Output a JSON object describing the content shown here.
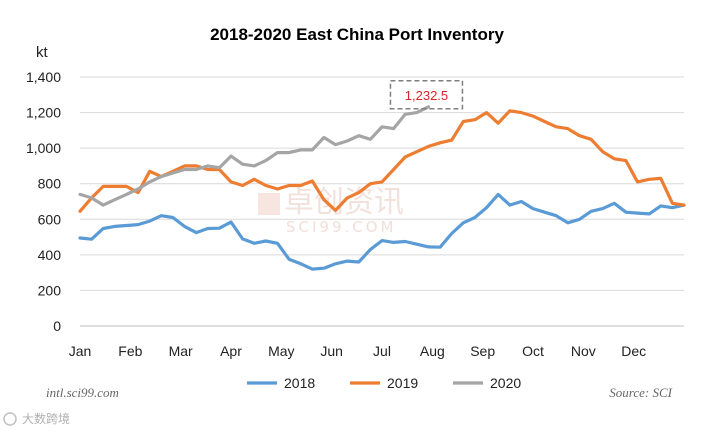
{
  "chart_data": {
    "type": "line",
    "title": "2018-2020 East China Port Inventory",
    "ylabel": "kt",
    "ylim": [
      0,
      1400
    ],
    "yticks": [
      0,
      200,
      400,
      600,
      800,
      1000,
      1200,
      1400
    ],
    "ytick_labels": [
      "0",
      "200",
      "400",
      "600",
      "800",
      "1,000",
      "1,200",
      "1,400"
    ],
    "xlim": [
      0,
      52
    ],
    "months": [
      "Jan",
      "Feb",
      "Mar",
      "Apr",
      "May",
      "Jun",
      "Jul",
      "Aug",
      "Sep",
      "Oct",
      "Nov",
      "Dec"
    ],
    "grid": true,
    "legend_position": "bottom",
    "series": [
      {
        "name": "2018",
        "color": "#5b9bd5",
        "x": [
          0,
          1,
          2,
          3,
          4,
          5,
          6,
          7,
          8,
          9,
          10,
          11,
          12,
          13,
          14,
          15,
          16,
          17,
          18,
          19,
          20,
          21,
          22,
          23,
          24,
          25,
          26,
          27,
          28,
          29,
          30,
          31,
          32,
          33,
          34,
          35,
          36,
          37,
          38,
          39,
          40,
          41,
          42,
          43,
          44,
          45,
          46,
          47,
          48,
          49,
          50,
          51,
          52
        ],
        "values": [
          495,
          488,
          548,
          560,
          565,
          570,
          590,
          620,
          610,
          560,
          525,
          548,
          550,
          585,
          490,
          465,
          478,
          465,
          375,
          350,
          320,
          325,
          350,
          365,
          360,
          430,
          480,
          470,
          475,
          460,
          445,
          443,
          520,
          580,
          610,
          665,
          740,
          680,
          700,
          660,
          640,
          620,
          580,
          600,
          645,
          660,
          690,
          640,
          635,
          630,
          675,
          665,
          680
        ]
      },
      {
        "name": "2019",
        "color": "#ed7d31",
        "x": [
          0,
          1,
          2,
          3,
          4,
          5,
          6,
          7,
          8,
          9,
          10,
          11,
          12,
          13,
          14,
          15,
          16,
          17,
          18,
          19,
          20,
          21,
          22,
          23,
          24,
          25,
          26,
          27,
          28,
          29,
          30,
          31,
          32,
          33,
          34,
          35,
          36,
          37,
          38,
          39,
          40,
          41,
          42,
          43,
          44,
          45,
          46,
          47,
          48,
          49,
          50,
          51,
          52
        ],
        "values": [
          645,
          720,
          785,
          785,
          785,
          750,
          870,
          840,
          870,
          900,
          900,
          880,
          880,
          810,
          790,
          825,
          790,
          770,
          790,
          790,
          815,
          710,
          650,
          720,
          750,
          800,
          810,
          880,
          950,
          980,
          1010,
          1030,
          1045,
          1150,
          1160,
          1200,
          1140,
          1210,
          1200,
          1180,
          1150,
          1120,
          1110,
          1070,
          1050,
          980,
          940,
          930,
          810,
          825,
          830,
          690,
          680
        ]
      },
      {
        "name": "2020",
        "color": "#a5a5a5",
        "x": [
          0,
          1,
          2,
          3,
          4,
          5,
          6,
          7,
          8,
          9,
          10,
          11,
          12,
          13,
          14,
          15,
          16,
          17,
          18,
          19,
          20,
          21,
          22,
          23,
          24,
          25,
          26,
          27,
          28,
          29,
          30
        ],
        "values": [
          740,
          720,
          680,
          710,
          740,
          770,
          810,
          840,
          860,
          880,
          880,
          900,
          890,
          955,
          910,
          900,
          930,
          975,
          975,
          990,
          990,
          1060,
          1020,
          1040,
          1070,
          1050,
          1120,
          1110,
          1190,
          1200,
          1232.5
        ]
      }
    ],
    "annotation": {
      "text": "1,232.5",
      "x": 30,
      "y": 1232.5
    }
  },
  "watermark": {
    "cn": "卓创资讯",
    "url": "SCI99.COM"
  },
  "footer": {
    "left": "intl.sci99.com",
    "right": "Source: SCI"
  },
  "brand": "大数跨境"
}
